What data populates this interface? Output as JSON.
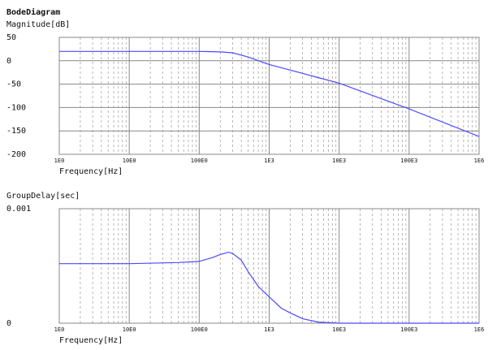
{
  "title": "BodeDiagram",
  "chart_data": [
    {
      "type": "line",
      "ylabel": "Magnitude[dB]",
      "xlabel": "Frequency[Hz]",
      "xscale": "log",
      "grid": true,
      "color": "#4a4aff",
      "x": [
        1,
        10,
        100,
        200,
        300,
        500,
        1000,
        2000,
        5000,
        10000,
        100000,
        1000000
      ],
      "values": [
        20,
        20,
        20,
        19,
        17,
        8,
        -8,
        -20,
        -36,
        -48,
        -103,
        -162
      ],
      "xlim": [
        1,
        1000000
      ],
      "xticks": [
        {
          "value": 1,
          "label": "1E0"
        },
        {
          "value": 10,
          "label": "10E0"
        },
        {
          "value": 100,
          "label": "100E0"
        },
        {
          "value": 1000,
          "label": "1E3"
        },
        {
          "value": 10000,
          "label": "10E3"
        },
        {
          "value": 100000,
          "label": "100E3"
        },
        {
          "value": 1000000,
          "label": "1E6"
        }
      ],
      "ylim": [
        -200,
        50
      ],
      "yticks": [
        50,
        0,
        -50,
        -100,
        -150,
        -200
      ]
    },
    {
      "type": "line",
      "ylabel": "GroupDelay[sec]",
      "xlabel": "Frequency[Hz]",
      "xscale": "log",
      "grid": true,
      "color": "#4a4aff",
      "x": [
        1,
        10,
        50,
        100,
        150,
        200,
        263,
        300,
        400,
        500,
        700,
        1000,
        1500,
        2000,
        3000,
        5000,
        10000,
        100000,
        1000000
      ],
      "values": [
        0.00052,
        0.00052,
        0.00053,
        0.00054,
        0.00057,
        0.0006,
        0.00062,
        0.00061,
        0.00055,
        0.00045,
        0.00032,
        0.00023,
        0.00013,
        9e-05,
        4e-05,
        1e-05,
        0,
        0,
        0
      ],
      "xlim": [
        1,
        1000000
      ],
      "xticks": [
        {
          "value": 1,
          "label": "1E0"
        },
        {
          "value": 10,
          "label": "10E0"
        },
        {
          "value": 100,
          "label": "100E0"
        },
        {
          "value": 1000,
          "label": "1E3"
        },
        {
          "value": 10000,
          "label": "10E3"
        },
        {
          "value": 100000,
          "label": "100E3"
        },
        {
          "value": 1000000,
          "label": "1E6"
        }
      ],
      "ylim": [
        0,
        0.001
      ],
      "yticks": [
        0.001,
        0
      ]
    }
  ]
}
